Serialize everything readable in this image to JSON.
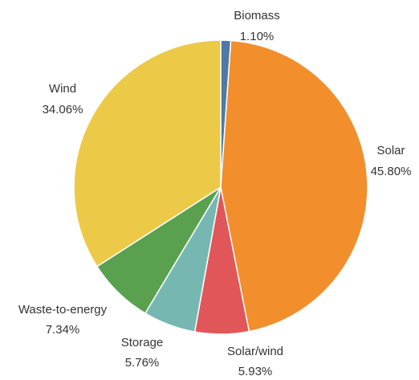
{
  "chart_data": {
    "type": "pie",
    "title": "",
    "slices": [
      {
        "label": "Biomass",
        "value": 1.1,
        "display": "1.10%",
        "color": "#4e79a7"
      },
      {
        "label": "Solar",
        "value": 45.8,
        "display": "45.80%",
        "color": "#f28e2b"
      },
      {
        "label": "Solar/wind",
        "value": 5.93,
        "display": "5.93%",
        "color": "#e15759"
      },
      {
        "label": "Storage",
        "value": 5.76,
        "display": "5.76%",
        "color": "#76b7b2"
      },
      {
        "label": "Waste-to-energy",
        "value": 7.34,
        "display": "7.34%",
        "color": "#59a14f"
      },
      {
        "label": "Wind",
        "value": 34.06,
        "display": "34.06%",
        "color": "#edc948"
      }
    ],
    "start_angle": "top",
    "direction": "clockwise"
  }
}
